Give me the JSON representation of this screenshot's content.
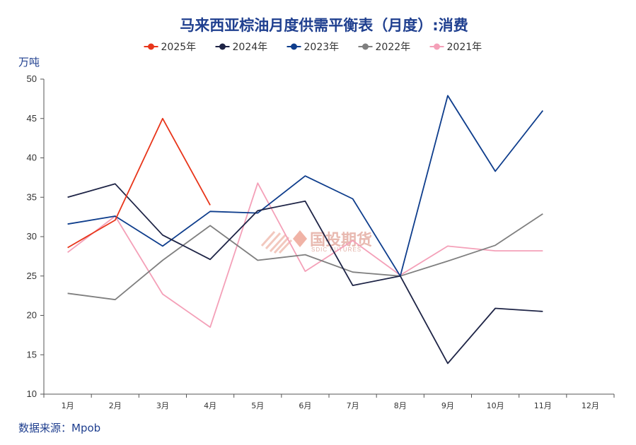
{
  "chart_data": {
    "type": "line",
    "title": "马来西亚棕油月度供需平衡表（月度）:消费",
    "ylabel": "万吨",
    "source": "数据来源：Mpob",
    "watermark": {
      "cn": "国投期货",
      "en": "SDIC FUTURES"
    },
    "categories": [
      "1月",
      "2月",
      "3月",
      "4月",
      "5月",
      "6月",
      "7月",
      "8月",
      "9月",
      "10月",
      "11月",
      "12月"
    ],
    "ylim": [
      10,
      50
    ],
    "yticks": [
      10,
      15,
      20,
      25,
      30,
      35,
      40,
      45,
      50
    ],
    "grid": false,
    "legend_position": "top-center",
    "series": [
      {
        "name": "2025年",
        "color": "#e8351a",
        "values": [
          28.6,
          32.1,
          45.0,
          34.0,
          null,
          null,
          null,
          null,
          null,
          null,
          null,
          null
        ]
      },
      {
        "name": "2024年",
        "color": "#1e2446",
        "values": [
          35.0,
          36.7,
          30.2,
          27.1,
          33.3,
          34.5,
          23.8,
          25.0,
          13.9,
          20.9,
          20.5,
          null
        ]
      },
      {
        "name": "2023年",
        "color": "#0e3d8c",
        "values": [
          31.6,
          32.6,
          28.8,
          33.2,
          33.0,
          37.7,
          34.8,
          25.0,
          47.9,
          38.3,
          46.0,
          null
        ]
      },
      {
        "name": "2022年",
        "color": "#7f7f7f",
        "values": [
          22.8,
          22.0,
          27.0,
          31.4,
          27.0,
          27.7,
          25.5,
          25.0,
          26.9,
          28.9,
          32.9,
          null
        ]
      },
      {
        "name": "2021年",
        "color": "#f4a0b8",
        "values": [
          28.0,
          32.6,
          22.7,
          18.5,
          36.8,
          25.6,
          29.5,
          25.1,
          28.8,
          28.2,
          28.2,
          null
        ]
      }
    ]
  }
}
